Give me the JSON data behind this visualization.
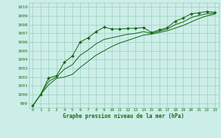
{
  "title": "Graphe pression niveau de la mer (hPa)",
  "bg_color": "#cceee8",
  "grid_color": "#99ccbb",
  "line_color": "#1a6b1a",
  "marker_color": "#1a6b1a",
  "ylim": [
    998.5,
    1010.5
  ],
  "yticks": [
    999,
    1000,
    1001,
    1002,
    1003,
    1004,
    1005,
    1006,
    1007,
    1008,
    1009,
    1010
  ],
  "xlim": [
    -0.5,
    23.5
  ],
  "xticks": [
    0,
    1,
    2,
    3,
    4,
    5,
    6,
    7,
    8,
    9,
    10,
    11,
    12,
    13,
    14,
    15,
    16,
    17,
    18,
    19,
    20,
    21,
    22,
    23
  ],
  "series_smooth": [
    998.7,
    1000.0,
    1001.1,
    1001.85,
    1002.0,
    1002.3,
    1003.1,
    1003.8,
    1004.5,
    1005.0,
    1005.5,
    1005.9,
    1006.2,
    1006.5,
    1006.8,
    1006.9,
    1007.1,
    1007.3,
    1007.6,
    1007.9,
    1008.3,
    1008.7,
    1009.0,
    1009.2
  ],
  "series_marked": [
    998.7,
    1000.0,
    1001.9,
    1002.15,
    1003.7,
    1004.4,
    1006.0,
    1006.5,
    1007.2,
    1007.7,
    1007.5,
    1007.5,
    1007.55,
    1007.6,
    1007.65,
    1007.1,
    1007.4,
    1007.65,
    1008.4,
    1008.75,
    1009.25,
    1009.35,
    1009.5,
    1009.4
  ],
  "series_mid": [
    998.7,
    1000.0,
    1001.5,
    1002.0,
    1002.9,
    1003.4,
    1004.5,
    1005.1,
    1005.8,
    1006.3,
    1006.5,
    1006.7,
    1006.9,
    1007.0,
    1007.2,
    1007.0,
    1007.25,
    1007.5,
    1008.0,
    1008.3,
    1008.8,
    1009.05,
    1009.25,
    1009.3
  ],
  "figsize": [
    3.2,
    2.0
  ],
  "dpi": 100
}
